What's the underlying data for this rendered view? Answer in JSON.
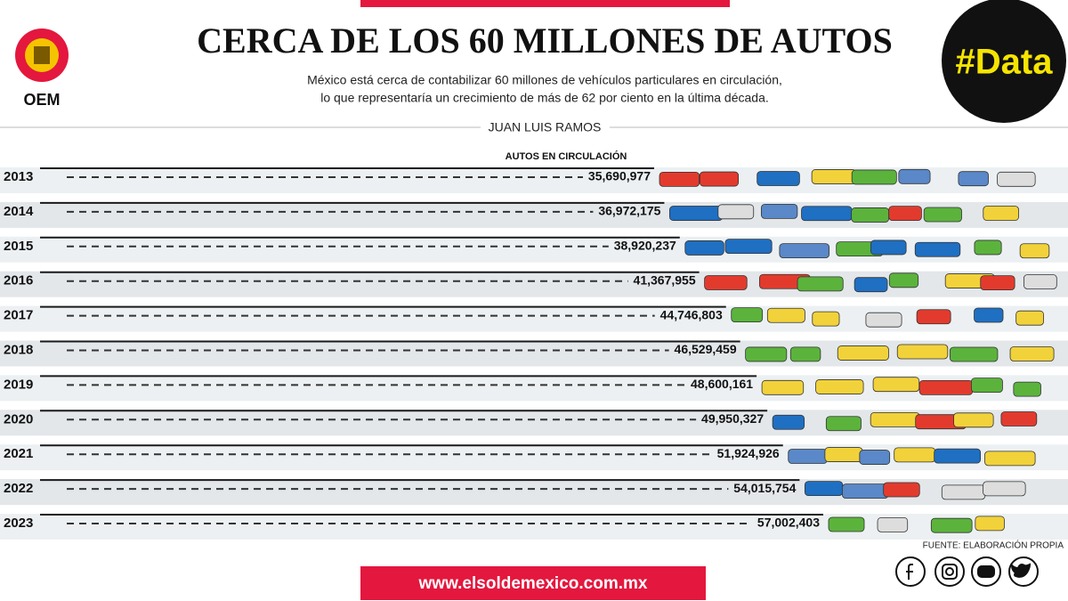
{
  "header": {
    "brand": "OEM",
    "tag": "#Data"
  },
  "chart_data": {
    "type": "bar",
    "orientation": "horizontal",
    "title": "CERCA DE LOS 60 MILLONES DE AUTOS",
    "subtitle": [
      "México está cerca de contabilizar 60 millones de vehículos particulares en circulación,",
      "lo que representaría un crecimiento de más de 62 por ciento en la última década."
    ],
    "author": "JUAN LUIS RAMOS",
    "value_title": "AUTOS EN CIRCULACIÓN",
    "categories": [
      "2013",
      "2014",
      "2015",
      "2016",
      "2017",
      "2018",
      "2019",
      "2020",
      "2021",
      "2022",
      "2023"
    ],
    "values": [
      35690977,
      36972175,
      38920237,
      41367955,
      44746803,
      46529459,
      48600161,
      49950327,
      51924926,
      54015754,
      57002403
    ],
    "value_labels": [
      "35,690,977",
      "36,972,175",
      "38,920,237",
      "41,367,955",
      "44,746,803",
      "46,529,459",
      "48,600,161",
      "49,950,327",
      "51,924,926",
      "54,015,754",
      "57,002,403"
    ],
    "color": "#1a1a1a",
    "source": "FUENTE: ELABORACIÓN PROPIA"
  },
  "footer": {
    "url": "www.elsoldemexico.com.mx"
  }
}
